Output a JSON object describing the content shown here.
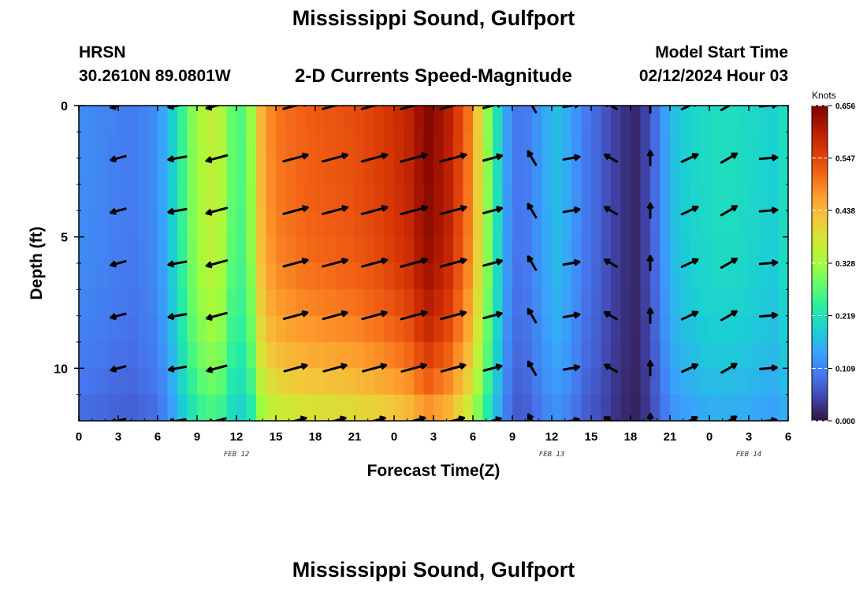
{
  "page": {
    "title": "Mississippi Sound, Gulfport",
    "bottom_title": "Mississippi Sound, Gulfport",
    "station": "HRSN",
    "coordinates": "30.2610N  89.0801W",
    "subtitle": "2-D Currents Speed-Magnitude",
    "model_start_label": "Model Start Time",
    "model_start_value": "02/12/2024 Hour 03"
  },
  "colors": {
    "palette": [
      "#30123b",
      "#4145ab",
      "#4675ed",
      "#39a2fc",
      "#1bcfd4",
      "#24eca6",
      "#61fc6c",
      "#a4fc3b",
      "#d1e834",
      "#f3c63a",
      "#fe9b2d",
      "#f36315",
      "#d93806",
      "#b11901",
      "#7a0403"
    ]
  },
  "chart_data": {
    "type": "heatmap",
    "xlabel": "Forecast Time(Z)",
    "ylabel": "Depth (ft)",
    "x_unit": "forecast hour from 2024-02-12 00Z",
    "xlim": [
      0,
      54
    ],
    "ylim": [
      0,
      12
    ],
    "x_tick_values": [
      0,
      3,
      6,
      9,
      12,
      15,
      18,
      21,
      24,
      27,
      30,
      33,
      36,
      39,
      42,
      45,
      48,
      51,
      54
    ],
    "x_tick_labels": [
      "0",
      "3",
      "6",
      "9",
      "12",
      "15",
      "18",
      "21",
      "0",
      "3",
      "6",
      "9",
      "12",
      "15",
      "18",
      "21",
      "0",
      "3",
      "6"
    ],
    "y_tick_values": [
      0,
      5,
      10
    ],
    "y_tick_labels": [
      "0",
      "5",
      "10"
    ],
    "date_labels": [
      {
        "x": 12,
        "text": "FEB 12"
      },
      {
        "x": 36,
        "text": "FEB 13"
      },
      {
        "x": 51,
        "text": "FEB 14"
      }
    ],
    "colorbar": {
      "title": "Knots",
      "min": 0.0,
      "max": 0.656,
      "tick_values": [
        0.0,
        0.109,
        0.219,
        0.328,
        0.438,
        0.547,
        0.656
      ],
      "tick_labels": [
        "0.000",
        "0.109",
        "0.219",
        "0.328",
        "0.438",
        "0.547",
        "0.656"
      ]
    },
    "speed_by_hour_at_surface": [
      {
        "hour": 0,
        "speed": 0.12
      },
      {
        "hour": 2,
        "speed": 0.11
      },
      {
        "hour": 4,
        "speed": 0.1
      },
      {
        "hour": 6,
        "speed": 0.12
      },
      {
        "hour": 7,
        "speed": 0.18
      },
      {
        "hour": 8,
        "speed": 0.26
      },
      {
        "hour": 9,
        "speed": 0.33
      },
      {
        "hour": 10,
        "speed": 0.36
      },
      {
        "hour": 11,
        "speed": 0.34
      },
      {
        "hour": 12,
        "speed": 0.25
      },
      {
        "hour": 13,
        "speed": 0.3
      },
      {
        "hour": 14,
        "speed": 0.46
      },
      {
        "hour": 15,
        "speed": 0.5
      },
      {
        "hour": 17,
        "speed": 0.52
      },
      {
        "hour": 19,
        "speed": 0.53
      },
      {
        "hour": 21,
        "speed": 0.54
      },
      {
        "hour": 23,
        "speed": 0.56
      },
      {
        "hour": 25,
        "speed": 0.59
      },
      {
        "hour": 26.5,
        "speed": 0.65
      },
      {
        "hour": 28,
        "speed": 0.61
      },
      {
        "hour": 29.5,
        "speed": 0.52
      },
      {
        "hour": 30.5,
        "speed": 0.4
      },
      {
        "hour": 31.5,
        "speed": 0.26
      },
      {
        "hour": 32.5,
        "speed": 0.14
      },
      {
        "hour": 33.5,
        "speed": 0.09
      },
      {
        "hour": 34.5,
        "speed": 0.11
      },
      {
        "hour": 35.5,
        "speed": 0.15
      },
      {
        "hour": 36.5,
        "speed": 0.17
      },
      {
        "hour": 37.5,
        "speed": 0.14
      },
      {
        "hour": 38.5,
        "speed": 0.1
      },
      {
        "hour": 39.5,
        "speed": 0.08
      },
      {
        "hour": 40.5,
        "speed": 0.05
      },
      {
        "hour": 41.5,
        "speed": 0.03
      },
      {
        "hour": 42.5,
        "speed": 0.02
      },
      {
        "hour": 43.5,
        "speed": 0.06
      },
      {
        "hour": 44.5,
        "speed": 0.13
      },
      {
        "hour": 45.5,
        "speed": 0.18
      },
      {
        "hour": 47,
        "speed": 0.2
      },
      {
        "hour": 48.5,
        "speed": 0.21
      },
      {
        "hour": 50,
        "speed": 0.21
      },
      {
        "hour": 51.5,
        "speed": 0.2
      },
      {
        "hour": 53,
        "speed": 0.19
      },
      {
        "hour": 54,
        "speed": 0.22
      }
    ],
    "depth_attenuation": [
      {
        "depth": 0,
        "factor": 1.0
      },
      {
        "depth": 4,
        "factor": 0.99
      },
      {
        "depth": 6,
        "factor": 0.97
      },
      {
        "depth": 8,
        "factor": 0.92
      },
      {
        "depth": 10,
        "factor": 0.84
      },
      {
        "depth": 12,
        "factor": 0.7
      }
    ],
    "arrow_depths": [
      0,
      2,
      4,
      6,
      8,
      10,
      12
    ],
    "arrow_hours": [
      3,
      7.5,
      10.5,
      16.5,
      19.5,
      22.5,
      25.5,
      28.5,
      31.5,
      34.5,
      37.5,
      40.5,
      43.5,
      46.5,
      49.5,
      52.5
    ],
    "arrow_direction_deg_by_hour": [
      195,
      190,
      195,
      15,
      15,
      15,
      15,
      15,
      15,
      120,
      10,
      150,
      90,
      25,
      30,
      5
    ],
    "arrow_speed_scale_knots": 0.6
  },
  "axis_labels": {
    "x": "Forecast Time(Z)",
    "y": "Depth (ft)",
    "colorbar": "Knots"
  }
}
